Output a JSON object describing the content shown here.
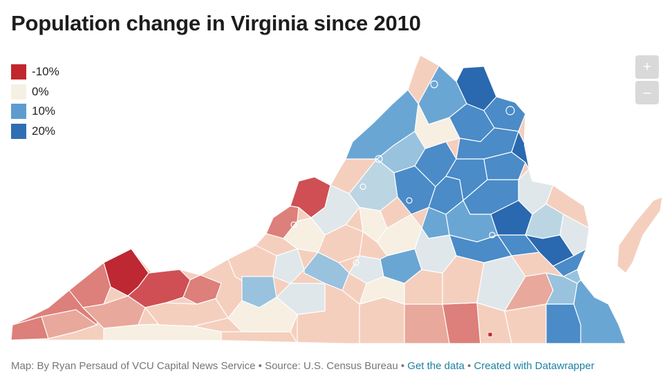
{
  "title": "Population change in Virginia since 2010",
  "legend": [
    {
      "label": "-10%",
      "color": "#c1272d"
    },
    {
      "label": "0%",
      "color": "#f5f0e3"
    },
    {
      "label": "10%",
      "color": "#5e9ccf"
    },
    {
      "label": "20%",
      "color": "#2f6eb2"
    }
  ],
  "zoom": {
    "in_label": "+",
    "out_label": "–"
  },
  "footer": {
    "credit": "Map: By Ryan Persaud of VCU Capital News Service",
    "sep1": " • ",
    "source": "Source: U.S. Census Bureau",
    "sep2": " • ",
    "data_link": "Get the data",
    "sep3": " • ",
    "dw_link": "Created with Datawrapper"
  },
  "palette": {
    "neg10": "#bd2832",
    "neg8": "#cf4f54",
    "neg6": "#dd7f7a",
    "neg4": "#e9a89c",
    "neg2": "#f5cfbe",
    "zero": "#f6efe2",
    "pos2": "#dfe7ea",
    "pos4": "#bcd5e3",
    "pos6": "#98c2de",
    "pos10": "#6aa6d4",
    "pos14": "#4a8bc8",
    "pos20": "#2a68b0"
  },
  "regions": [
    {
      "name": "far-southwest",
      "color": "neg6"
    },
    {
      "name": "southwest-coalfield",
      "color": "neg10"
    },
    {
      "name": "tazewell-area",
      "color": "neg8"
    },
    {
      "name": "alleghany-highlands",
      "color": "neg8"
    },
    {
      "name": "shenandoah-valley-north",
      "color": "pos10"
    },
    {
      "name": "northern-virginia",
      "color": "pos20"
    },
    {
      "name": "richmond-metro",
      "color": "pos14"
    },
    {
      "name": "hampton-roads",
      "color": "pos14"
    },
    {
      "name": "southside",
      "color": "neg2"
    },
    {
      "name": "eastern-shore",
      "color": "neg2"
    }
  ]
}
